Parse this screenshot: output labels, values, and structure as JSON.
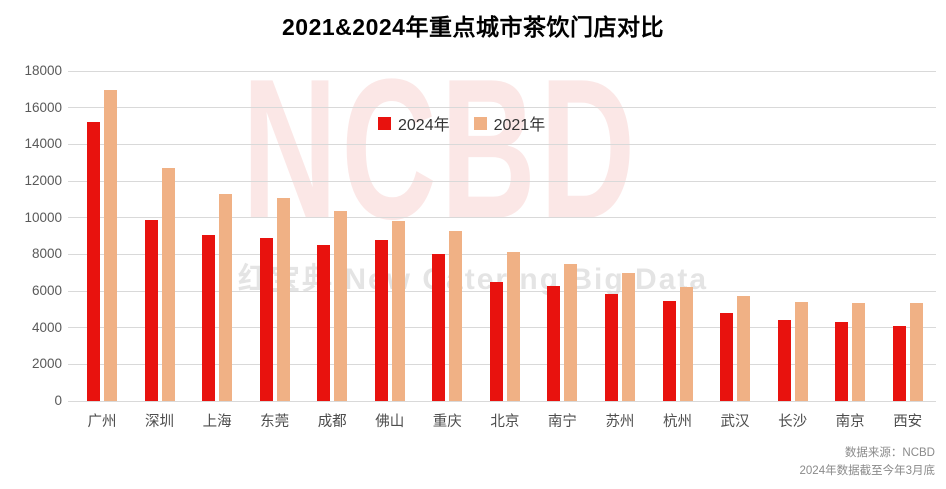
{
  "chart_data": {
    "type": "bar",
    "title": "2021&2024年重点城市茶饮门店对比",
    "categories": [
      "广州",
      "深圳",
      "上海",
      "东莞",
      "成都",
      "佛山",
      "重庆",
      "北京",
      "南宁",
      "苏州",
      "杭州",
      "武汉",
      "长沙",
      "南京",
      "西安"
    ],
    "series": [
      {
        "name": "2024年",
        "color": "#e8120e",
        "values": [
          15200,
          9850,
          9050,
          8900,
          8500,
          8800,
          8000,
          6500,
          6300,
          5850,
          5450,
          4800,
          4400,
          4300,
          4100
        ]
      },
      {
        "name": "2021年",
        "color": "#f0b185",
        "values": [
          16950,
          12700,
          11300,
          11100,
          10350,
          9800,
          9250,
          8150,
          7500,
          7000,
          6200,
          5750,
          5400,
          5350,
          5350
        ]
      }
    ],
    "ylim": [
      0,
      18000
    ],
    "ytick_interval": 2000,
    "grid": "horizontal",
    "legend_position": "top-center"
  },
  "watermarks": {
    "ncbd": "NCBD",
    "brand": "红宝典 New Catering Big Data"
  },
  "source": {
    "line1": "数据来源：NCBD",
    "line2": "2024年数据截至今年3月底"
  }
}
